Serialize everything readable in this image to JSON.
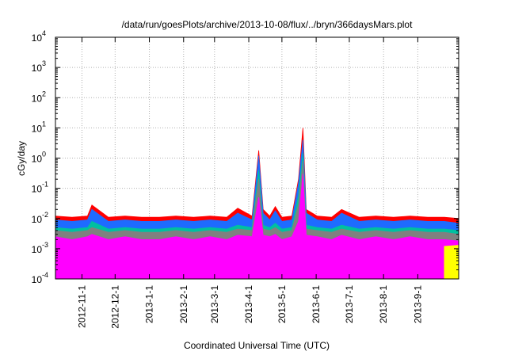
{
  "chart_data": {
    "type": "area",
    "title": "/data/run/goesPlots/archive/2013-10-08/flux/../bryn/366daysMars.plot",
    "xlabel": "Coordinated Universal Time (UTC)",
    "ylabel": "cGy/day",
    "yscale": "log",
    "ylim": [
      0.0001,
      10000
    ],
    "xlim": [
      "2012-10-08",
      "2013-10-08"
    ],
    "grid": true,
    "legend": "none",
    "y_ticks": [
      {
        "base": "10",
        "exp": "-4"
      },
      {
        "base": "10",
        "exp": "-3"
      },
      {
        "base": "10",
        "exp": "-2"
      },
      {
        "base": "10",
        "exp": "-1"
      },
      {
        "base": "10",
        "exp": "0"
      },
      {
        "base": "10",
        "exp": "1"
      },
      {
        "base": "10",
        "exp": "2"
      },
      {
        "base": "10",
        "exp": "3"
      },
      {
        "base": "10",
        "exp": "4"
      }
    ],
    "x_ticks": [
      "2012-11-1",
      "2012-12-1",
      "2013-1-1",
      "2013-2-1",
      "2013-3-1",
      "2013-4-1",
      "2013-5-1",
      "2013-6-1",
      "2013-7-1",
      "2013-8-1",
      "2013-9-1"
    ],
    "series_colors": [
      "#ff0000",
      "#1e6bff",
      "#00c0a0",
      "#808080",
      "#ff00ff",
      "#ffff00"
    ],
    "x": [
      "2012-10-08",
      "2012-10-23",
      "2012-11-06",
      "2012-11-10",
      "2012-11-25",
      "2012-12-10",
      "2012-12-25",
      "2013-01-10",
      "2013-01-25",
      "2013-02-10",
      "2013-02-25",
      "2013-03-12",
      "2013-03-22",
      "2013-04-04",
      "2013-04-10",
      "2013-04-14",
      "2013-04-20",
      "2013-04-25",
      "2013-05-01",
      "2013-05-10",
      "2013-05-16",
      "2013-05-20",
      "2013-05-23",
      "2013-06-02",
      "2013-06-15",
      "2013-06-24",
      "2013-07-10",
      "2013-07-25",
      "2013-08-10",
      "2013-08-25",
      "2013-09-10",
      "2013-09-25",
      "2013-10-08"
    ],
    "series": [
      {
        "values": [
          0.012,
          0.011,
          0.012,
          0.028,
          0.011,
          0.012,
          0.011,
          0.011,
          0.012,
          0.011,
          0.012,
          0.011,
          0.022,
          0.012,
          1.8,
          0.02,
          0.012,
          0.025,
          0.011,
          0.012,
          0.2,
          10.0,
          0.02,
          0.012,
          0.011,
          0.02,
          0.011,
          0.012,
          0.011,
          0.012,
          0.011,
          0.011,
          0.01
        ]
      },
      {
        "values": [
          0.009,
          0.008,
          0.009,
          0.02,
          0.008,
          0.009,
          0.008,
          0.008,
          0.009,
          0.008,
          0.009,
          0.008,
          0.015,
          0.009,
          1.2,
          0.015,
          0.009,
          0.018,
          0.008,
          0.009,
          0.15,
          4.0,
          0.015,
          0.009,
          0.008,
          0.015,
          0.008,
          0.009,
          0.008,
          0.009,
          0.008,
          0.008,
          0.007
        ]
      },
      {
        "values": [
          0.005,
          0.0045,
          0.005,
          0.008,
          0.0045,
          0.005,
          0.0045,
          0.0045,
          0.005,
          0.0045,
          0.005,
          0.0045,
          0.006,
          0.005,
          0.4,
          0.006,
          0.005,
          0.007,
          0.0045,
          0.005,
          0.06,
          1.5,
          0.006,
          0.005,
          0.0045,
          0.006,
          0.0045,
          0.005,
          0.0045,
          0.005,
          0.0045,
          0.0045,
          0.004
        ]
      },
      {
        "values": [
          0.004,
          0.0035,
          0.004,
          0.005,
          0.0035,
          0.004,
          0.0035,
          0.0035,
          0.004,
          0.0035,
          0.004,
          0.0035,
          0.0045,
          0.004,
          0.2,
          0.0045,
          0.004,
          0.005,
          0.0035,
          0.004,
          0.03,
          0.8,
          0.0045,
          0.004,
          0.0035,
          0.0045,
          0.0035,
          0.004,
          0.0035,
          0.004,
          0.0035,
          0.0035,
          0.003
        ]
      },
      {
        "values": [
          0.0025,
          0.002,
          0.0025,
          0.003,
          0.002,
          0.0025,
          0.002,
          0.002,
          0.0025,
          0.002,
          0.0025,
          0.002,
          0.0028,
          0.0025,
          0.05,
          0.0028,
          0.0025,
          0.003,
          0.002,
          0.0025,
          0.008,
          0.3,
          0.0028,
          0.0025,
          0.002,
          0.0028,
          0.002,
          0.0025,
          0.002,
          0.0025,
          0.002,
          0.002,
          0.0018
        ]
      },
      {
        "values": [
          null,
          null,
          null,
          null,
          null,
          null,
          null,
          null,
          null,
          null,
          null,
          null,
          null,
          null,
          null,
          null,
          null,
          null,
          null,
          null,
          null,
          null,
          null,
          null,
          null,
          null,
          null,
          null,
          null,
          null,
          null,
          0.0012,
          0.0013
        ]
      }
    ]
  }
}
